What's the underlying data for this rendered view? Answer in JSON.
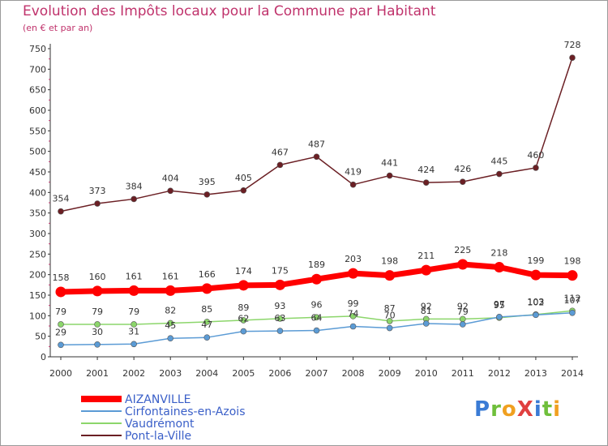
{
  "header": {
    "title": "Evolution des Impôts locaux pour la Commune par Habitant",
    "subtitle": "(en € et par an)"
  },
  "logo": {
    "text": "ProXiti"
  },
  "chart_data": {
    "type": "line",
    "title": "Evolution des Impôts locaux pour la Commune par Habitant",
    "subtitle": "(en € et par an)",
    "xlabel": "",
    "ylabel": "",
    "x": [
      "2000",
      "2001",
      "2002",
      "2003",
      "2004",
      "2005",
      "2006",
      "2007",
      "2008",
      "2009",
      "2010",
      "2011",
      "2012",
      "2013",
      "2014"
    ],
    "ylim": [
      0,
      750
    ],
    "yticks": [
      0,
      50,
      100,
      150,
      200,
      250,
      300,
      350,
      400,
      450,
      500,
      550,
      600,
      650,
      700,
      750
    ],
    "grid": false,
    "legend_position": "bottom-left",
    "series": [
      {
        "name": "AIZANVILLE",
        "color": "#ff0000",
        "values": [
          158,
          160,
          161,
          161,
          166,
          174,
          175,
          189,
          203,
          198,
          211,
          225,
          218,
          199,
          198
        ],
        "labels": [
          "158",
          "160",
          "161",
          "161",
          "166",
          "174",
          "175",
          "189",
          "203",
          "198",
          "211",
          "225",
          "218",
          "199",
          "198"
        ]
      },
      {
        "name": "Cirfontaines-en-Azois",
        "color": "#5b9bd5",
        "values": [
          29,
          30,
          31,
          45,
          47,
          62,
          63,
          64,
          74,
          70,
          81,
          79,
          97,
          102,
          107
        ],
        "labels": [
          "29",
          "30",
          "31",
          "45",
          "47",
          "62",
          "63",
          "64",
          "74",
          "70",
          "81",
          "79",
          "97",
          "102",
          "107"
        ]
      },
      {
        "name": "Vaudrémont",
        "color": "#8cd66b",
        "values": [
          79,
          79,
          79,
          82,
          85,
          89,
          93,
          96,
          99,
          87,
          92,
          92,
          95,
          103,
          112
        ],
        "labels": [
          "79",
          "79",
          "79",
          "82",
          "85",
          "89",
          "93",
          "96",
          "99",
          "87",
          "92",
          "92",
          "95",
          "103",
          "112"
        ]
      },
      {
        "name": "Pont-la-Ville",
        "color": "#6b1f24",
        "values": [
          354,
          373,
          384,
          404,
          395,
          405,
          467,
          487,
          419,
          441,
          424,
          426,
          445,
          460,
          728
        ],
        "labels": [
          "354",
          "373",
          "384",
          "404",
          "395",
          "405",
          "467",
          "487",
          "419",
          "441",
          "424",
          "426",
          "445",
          "460",
          "728"
        ]
      }
    ]
  }
}
